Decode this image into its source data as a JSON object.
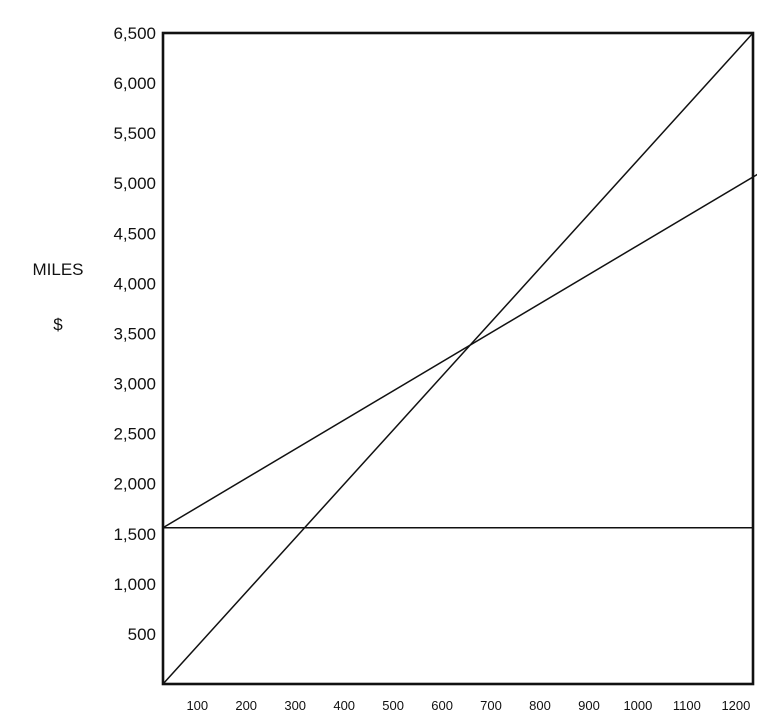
{
  "chart_data": {
    "type": "line",
    "title": "",
    "xlabel": "",
    "ylabel": [
      "MILES",
      "$"
    ],
    "xlim": [
      30,
      1235
    ],
    "ylim": [
      0,
      6500
    ],
    "x_ticks": [
      100,
      200,
      300,
      400,
      500,
      600,
      700,
      800,
      900,
      1000,
      1100,
      1200
    ],
    "y_ticks": [
      500,
      1000,
      1500,
      2000,
      2500,
      3000,
      3500,
      4000,
      4500,
      5000,
      5500,
      6000,
      6500
    ],
    "y_tick_labels": [
      "500",
      "1,000",
      "1,500",
      "2,000",
      "2,500",
      "3,000",
      "3,500",
      "4,000",
      "4,500",
      "5,000",
      "5,500",
      "6,000",
      "6,500"
    ],
    "grid": false,
    "series": [
      {
        "x": [
          30,
          1235
        ],
        "y": [
          0,
          6500
        ],
        "color": "#111111"
      },
      {
        "x": [
          30,
          1265
        ],
        "y": [
          1560,
          5150
        ],
        "color": "#111111"
      },
      {
        "x": [
          30,
          1235
        ],
        "y": [
          1560,
          1560
        ],
        "color": "#111111"
      }
    ]
  }
}
